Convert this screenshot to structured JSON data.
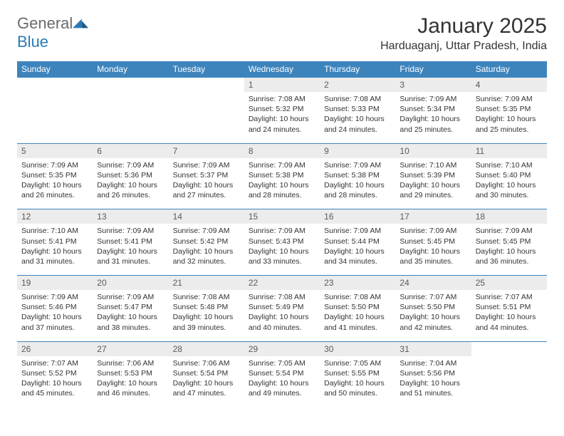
{
  "brand": {
    "name1": "General",
    "name2": "Blue"
  },
  "title": "January 2025",
  "location": "Harduaganj, Uttar Pradesh, India",
  "colors": {
    "header_bg": "#3d84bd",
    "daynum_bg": "#ececec",
    "text": "#333333",
    "brand_gray": "#6b6b6b",
    "brand_blue": "#2a7ab8",
    "border": "#3d84bd"
  },
  "fonts": {
    "base_family": "Arial",
    "title_size_pt": 22,
    "location_size_pt": 12,
    "header_size_pt": 9,
    "body_size_pt": 8
  },
  "day_headers": [
    "Sunday",
    "Monday",
    "Tuesday",
    "Wednesday",
    "Thursday",
    "Friday",
    "Saturday"
  ],
  "weeks": [
    [
      {
        "n": "",
        "sr": "",
        "ss": "",
        "dl1": "",
        "dl2": ""
      },
      {
        "n": "",
        "sr": "",
        "ss": "",
        "dl1": "",
        "dl2": ""
      },
      {
        "n": "",
        "sr": "",
        "ss": "",
        "dl1": "",
        "dl2": ""
      },
      {
        "n": "1",
        "sr": "Sunrise: 7:08 AM",
        "ss": "Sunset: 5:32 PM",
        "dl1": "Daylight: 10 hours",
        "dl2": "and 24 minutes."
      },
      {
        "n": "2",
        "sr": "Sunrise: 7:08 AM",
        "ss": "Sunset: 5:33 PM",
        "dl1": "Daylight: 10 hours",
        "dl2": "and 24 minutes."
      },
      {
        "n": "3",
        "sr": "Sunrise: 7:09 AM",
        "ss": "Sunset: 5:34 PM",
        "dl1": "Daylight: 10 hours",
        "dl2": "and 25 minutes."
      },
      {
        "n": "4",
        "sr": "Sunrise: 7:09 AM",
        "ss": "Sunset: 5:35 PM",
        "dl1": "Daylight: 10 hours",
        "dl2": "and 25 minutes."
      }
    ],
    [
      {
        "n": "5",
        "sr": "Sunrise: 7:09 AM",
        "ss": "Sunset: 5:35 PM",
        "dl1": "Daylight: 10 hours",
        "dl2": "and 26 minutes."
      },
      {
        "n": "6",
        "sr": "Sunrise: 7:09 AM",
        "ss": "Sunset: 5:36 PM",
        "dl1": "Daylight: 10 hours",
        "dl2": "and 26 minutes."
      },
      {
        "n": "7",
        "sr": "Sunrise: 7:09 AM",
        "ss": "Sunset: 5:37 PM",
        "dl1": "Daylight: 10 hours",
        "dl2": "and 27 minutes."
      },
      {
        "n": "8",
        "sr": "Sunrise: 7:09 AM",
        "ss": "Sunset: 5:38 PM",
        "dl1": "Daylight: 10 hours",
        "dl2": "and 28 minutes."
      },
      {
        "n": "9",
        "sr": "Sunrise: 7:09 AM",
        "ss": "Sunset: 5:38 PM",
        "dl1": "Daylight: 10 hours",
        "dl2": "and 28 minutes."
      },
      {
        "n": "10",
        "sr": "Sunrise: 7:10 AM",
        "ss": "Sunset: 5:39 PM",
        "dl1": "Daylight: 10 hours",
        "dl2": "and 29 minutes."
      },
      {
        "n": "11",
        "sr": "Sunrise: 7:10 AM",
        "ss": "Sunset: 5:40 PM",
        "dl1": "Daylight: 10 hours",
        "dl2": "and 30 minutes."
      }
    ],
    [
      {
        "n": "12",
        "sr": "Sunrise: 7:10 AM",
        "ss": "Sunset: 5:41 PM",
        "dl1": "Daylight: 10 hours",
        "dl2": "and 31 minutes."
      },
      {
        "n": "13",
        "sr": "Sunrise: 7:09 AM",
        "ss": "Sunset: 5:41 PM",
        "dl1": "Daylight: 10 hours",
        "dl2": "and 31 minutes."
      },
      {
        "n": "14",
        "sr": "Sunrise: 7:09 AM",
        "ss": "Sunset: 5:42 PM",
        "dl1": "Daylight: 10 hours",
        "dl2": "and 32 minutes."
      },
      {
        "n": "15",
        "sr": "Sunrise: 7:09 AM",
        "ss": "Sunset: 5:43 PM",
        "dl1": "Daylight: 10 hours",
        "dl2": "and 33 minutes."
      },
      {
        "n": "16",
        "sr": "Sunrise: 7:09 AM",
        "ss": "Sunset: 5:44 PM",
        "dl1": "Daylight: 10 hours",
        "dl2": "and 34 minutes."
      },
      {
        "n": "17",
        "sr": "Sunrise: 7:09 AM",
        "ss": "Sunset: 5:45 PM",
        "dl1": "Daylight: 10 hours",
        "dl2": "and 35 minutes."
      },
      {
        "n": "18",
        "sr": "Sunrise: 7:09 AM",
        "ss": "Sunset: 5:45 PM",
        "dl1": "Daylight: 10 hours",
        "dl2": "and 36 minutes."
      }
    ],
    [
      {
        "n": "19",
        "sr": "Sunrise: 7:09 AM",
        "ss": "Sunset: 5:46 PM",
        "dl1": "Daylight: 10 hours",
        "dl2": "and 37 minutes."
      },
      {
        "n": "20",
        "sr": "Sunrise: 7:09 AM",
        "ss": "Sunset: 5:47 PM",
        "dl1": "Daylight: 10 hours",
        "dl2": "and 38 minutes."
      },
      {
        "n": "21",
        "sr": "Sunrise: 7:08 AM",
        "ss": "Sunset: 5:48 PM",
        "dl1": "Daylight: 10 hours",
        "dl2": "and 39 minutes."
      },
      {
        "n": "22",
        "sr": "Sunrise: 7:08 AM",
        "ss": "Sunset: 5:49 PM",
        "dl1": "Daylight: 10 hours",
        "dl2": "and 40 minutes."
      },
      {
        "n": "23",
        "sr": "Sunrise: 7:08 AM",
        "ss": "Sunset: 5:50 PM",
        "dl1": "Daylight: 10 hours",
        "dl2": "and 41 minutes."
      },
      {
        "n": "24",
        "sr": "Sunrise: 7:07 AM",
        "ss": "Sunset: 5:50 PM",
        "dl1": "Daylight: 10 hours",
        "dl2": "and 42 minutes."
      },
      {
        "n": "25",
        "sr": "Sunrise: 7:07 AM",
        "ss": "Sunset: 5:51 PM",
        "dl1": "Daylight: 10 hours",
        "dl2": "and 44 minutes."
      }
    ],
    [
      {
        "n": "26",
        "sr": "Sunrise: 7:07 AM",
        "ss": "Sunset: 5:52 PM",
        "dl1": "Daylight: 10 hours",
        "dl2": "and 45 minutes."
      },
      {
        "n": "27",
        "sr": "Sunrise: 7:06 AM",
        "ss": "Sunset: 5:53 PM",
        "dl1": "Daylight: 10 hours",
        "dl2": "and 46 minutes."
      },
      {
        "n": "28",
        "sr": "Sunrise: 7:06 AM",
        "ss": "Sunset: 5:54 PM",
        "dl1": "Daylight: 10 hours",
        "dl2": "and 47 minutes."
      },
      {
        "n": "29",
        "sr": "Sunrise: 7:05 AM",
        "ss": "Sunset: 5:54 PM",
        "dl1": "Daylight: 10 hours",
        "dl2": "and 49 minutes."
      },
      {
        "n": "30",
        "sr": "Sunrise: 7:05 AM",
        "ss": "Sunset: 5:55 PM",
        "dl1": "Daylight: 10 hours",
        "dl2": "and 50 minutes."
      },
      {
        "n": "31",
        "sr": "Sunrise: 7:04 AM",
        "ss": "Sunset: 5:56 PM",
        "dl1": "Daylight: 10 hours",
        "dl2": "and 51 minutes."
      },
      {
        "n": "",
        "sr": "",
        "ss": "",
        "dl1": "",
        "dl2": ""
      }
    ]
  ]
}
